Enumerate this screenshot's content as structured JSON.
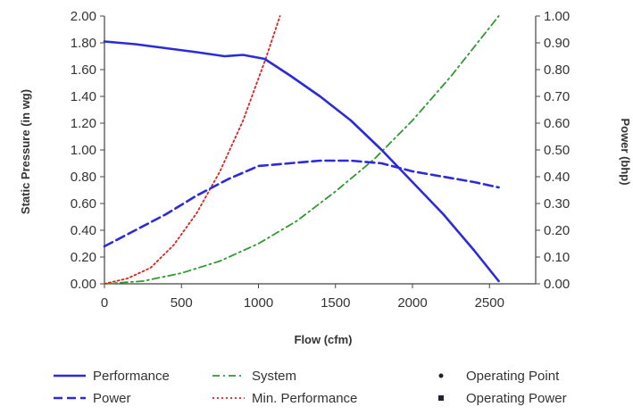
{
  "chart_data": {
    "type": "line",
    "xlabel": "Flow (cfm)",
    "ylabel": "Static Pressure (in wg)",
    "y2label": "Power (bhp)",
    "xlim": [
      0,
      2800
    ],
    "ylim": [
      0,
      2.0
    ],
    "y2lim": [
      0,
      1.0
    ],
    "x_ticks": [
      "0",
      "500",
      "1000",
      "1500",
      "2000",
      "2500"
    ],
    "y_ticks": [
      "0.00",
      "0.20",
      "0.40",
      "0.60",
      "0.80",
      "1.00",
      "1.20",
      "1.40",
      "1.60",
      "1.80",
      "2.00"
    ],
    "y2_ticks": [
      "0.00",
      "0.10",
      "0.20",
      "0.30",
      "0.40",
      "0.50",
      "0.60",
      "0.70",
      "0.80",
      "0.90",
      "1.00"
    ],
    "grid": false,
    "legend_position": "bottom",
    "series": [
      {
        "name": "Performance",
        "axis": "left",
        "color": "#2b2bd9",
        "style": "solid",
        "x": [
          0,
          200,
          400,
          600,
          780,
          900,
          1040,
          1200,
          1400,
          1600,
          1800,
          2000,
          2200,
          2400,
          2560
        ],
        "y": [
          1.81,
          1.79,
          1.76,
          1.73,
          1.7,
          1.71,
          1.68,
          1.56,
          1.4,
          1.22,
          1.0,
          0.76,
          0.52,
          0.25,
          0.02
        ]
      },
      {
        "name": "Power",
        "axis": "right",
        "color": "#2b2bd9",
        "style": "dashed",
        "x": [
          0,
          200,
          400,
          600,
          800,
          1000,
          1200,
          1400,
          1600,
          1800,
          2000,
          2200,
          2400,
          2560
        ],
        "y": [
          0.14,
          0.2,
          0.26,
          0.33,
          0.39,
          0.44,
          0.45,
          0.46,
          0.46,
          0.45,
          0.42,
          0.4,
          0.38,
          0.36
        ]
      },
      {
        "name": "System",
        "axis": "left",
        "color": "#2e9a2e",
        "style": "dashdot",
        "x": [
          0,
          250,
          500,
          750,
          1000,
          1250,
          1500,
          1750,
          2000,
          2250,
          2560
        ],
        "y": [
          0.0,
          0.02,
          0.08,
          0.17,
          0.3,
          0.47,
          0.69,
          0.93,
          1.22,
          1.55,
          2.0
        ]
      },
      {
        "name": "Min. Performance",
        "axis": "left",
        "color": "#dd2222",
        "style": "dotted",
        "x": [
          0,
          150,
          300,
          450,
          600,
          750,
          900,
          1050,
          1140
        ],
        "y": [
          0.0,
          0.04,
          0.12,
          0.29,
          0.53,
          0.84,
          1.22,
          1.69,
          2.0
        ]
      }
    ],
    "legend": [
      {
        "label": "Performance",
        "symbol": "solid",
        "color": "#2b2bd9"
      },
      {
        "label": "System",
        "symbol": "dashdot",
        "color": "#2e9a2e"
      },
      {
        "label": "Operating Point",
        "symbol": "dot",
        "color": "#222222"
      },
      {
        "label": "Power",
        "symbol": "dashed",
        "color": "#2b2bd9"
      },
      {
        "label": "Min. Performance",
        "symbol": "dotted",
        "color": "#dd2222"
      },
      {
        "label": "Operating Power",
        "symbol": "square",
        "color": "#222233"
      }
    ]
  }
}
